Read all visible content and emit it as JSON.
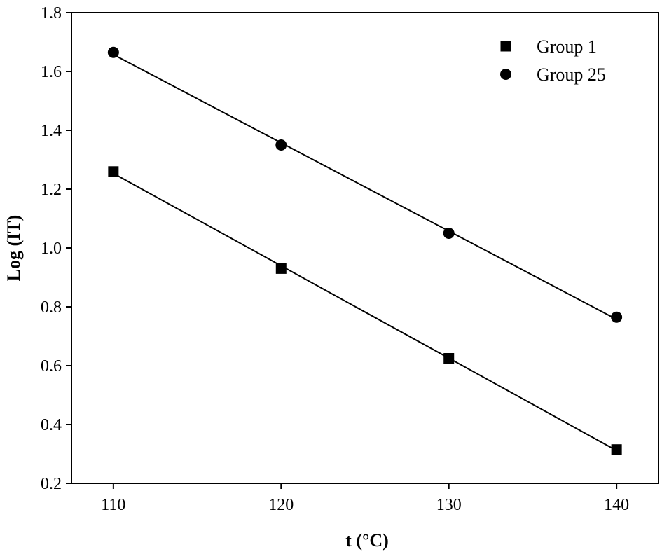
{
  "chart_data": {
    "type": "scatter",
    "xlabel": "t (°C)",
    "ylabel": "Log (IT)",
    "xlim": [
      107.5,
      142.5
    ],
    "ylim": [
      0.2,
      1.8
    ],
    "xticks": [
      110,
      120,
      130,
      140
    ],
    "yticks": [
      0.2,
      0.4,
      0.6,
      0.8,
      1.0,
      1.2,
      1.4,
      1.6,
      1.8
    ],
    "ytick_labels": [
      "0.2",
      "0.4",
      "0.6",
      "0.8",
      "1.0",
      "1.2",
      "1.4",
      "1.6",
      "1.8"
    ],
    "xtick_labels": [
      "110",
      "120",
      "130",
      "140"
    ],
    "legend_position": "top-right",
    "grid": false,
    "series": [
      {
        "name": "Group 1",
        "marker": "square",
        "color": "#000000",
        "x": [
          110,
          120,
          130,
          140
        ],
        "y": [
          1.26,
          0.93,
          0.625,
          0.315
        ],
        "fit_line": true
      },
      {
        "name": "Group 25",
        "marker": "circle",
        "color": "#000000",
        "x": [
          110,
          120,
          130,
          140
        ],
        "y": [
          1.665,
          1.35,
          1.05,
          0.765
        ],
        "fit_line": true
      }
    ]
  }
}
